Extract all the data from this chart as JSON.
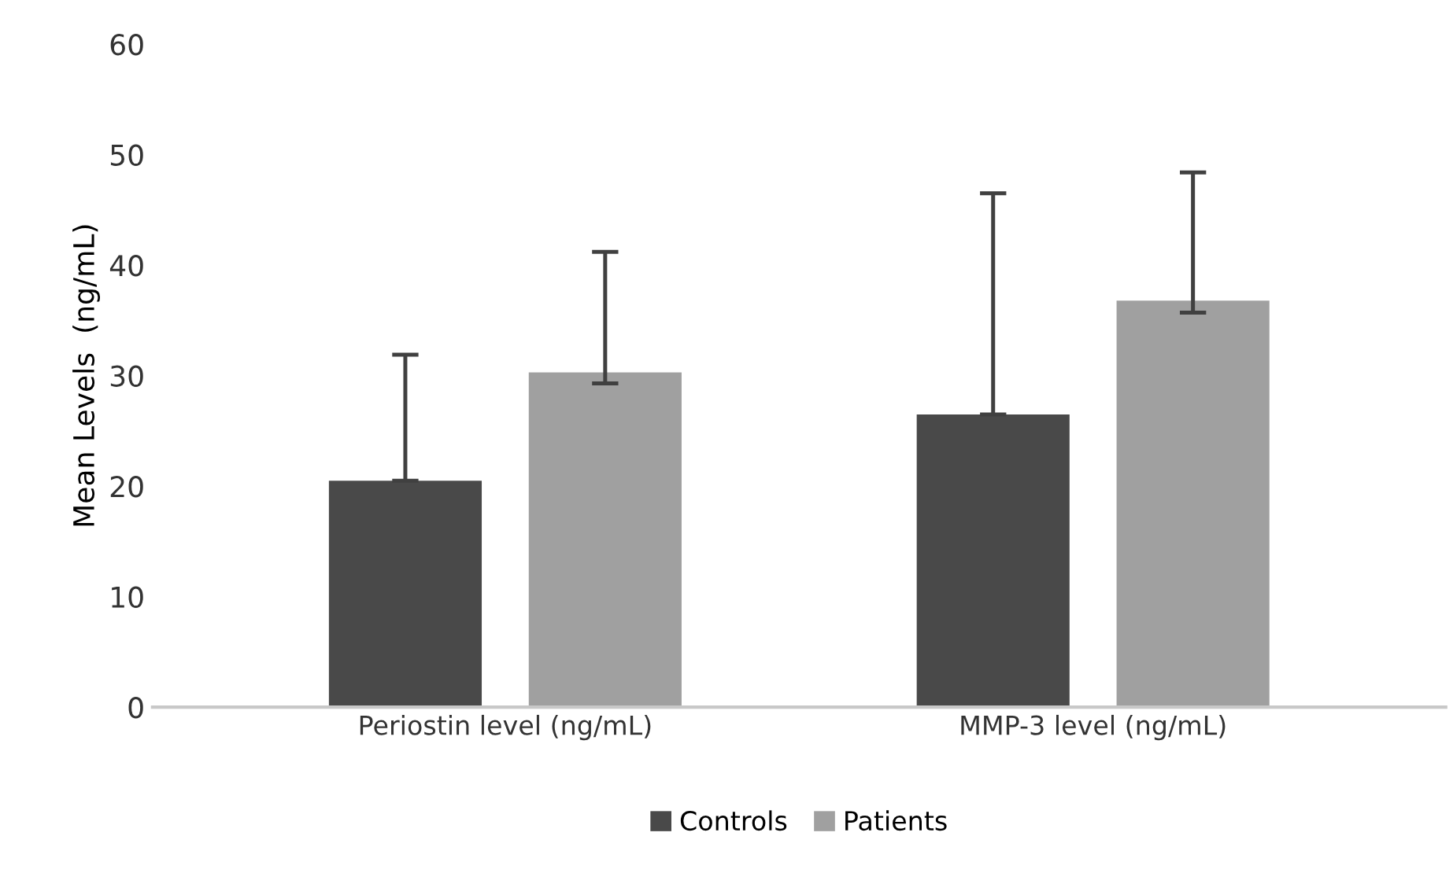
{
  "chart_data": {
    "type": "bar",
    "ylabel": "Mean Levels  (ng/mL)",
    "categories": [
      "Periostin level (ng/mL)",
      "MMP-3 level (ng/mL)"
    ],
    "series": [
      {
        "name": "Controls",
        "color": "#494949",
        "values": [
          20.5,
          26.5
        ],
        "errors": [
          [
            20.5,
            31.9
          ],
          [
            26.5,
            46.5
          ]
        ]
      },
      {
        "name": "Patients",
        "color": "#a0a0a0",
        "values": [
          30.3,
          36.8
        ],
        "errors": [
          [
            29.3,
            41.2
          ],
          [
            35.7,
            48.4
          ]
        ]
      }
    ],
    "ylim": [
      0,
      60
    ],
    "yticks": [
      0,
      10,
      20,
      30,
      40,
      50,
      60
    ],
    "grid": false,
    "legend": "bottom"
  }
}
